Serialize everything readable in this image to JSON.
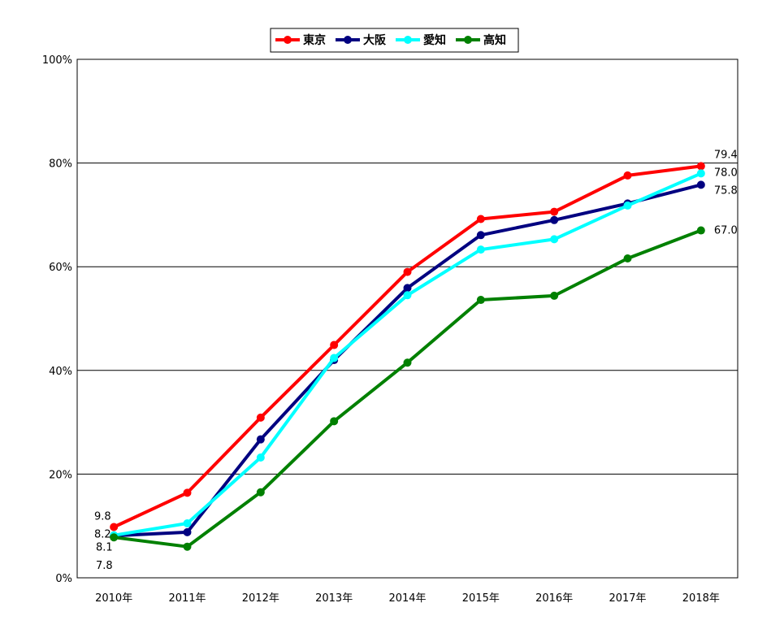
{
  "chart_data": {
    "type": "line",
    "categories": [
      "2010年",
      "2011年",
      "2012年",
      "2013年",
      "2014年",
      "2015年",
      "2016年",
      "2017年",
      "2018年"
    ],
    "ylim": [
      0,
      100
    ],
    "yticks": [
      "0%",
      "20%",
      "40%",
      "60%",
      "80%",
      "100%"
    ],
    "grid": true,
    "legend_position": "top-center",
    "series": [
      {
        "name": "東京",
        "color": "#ff0000",
        "values": [
          9.8,
          16.4,
          30.9,
          44.9,
          59.0,
          69.2,
          70.6,
          77.6,
          79.4
        ]
      },
      {
        "name": "大阪",
        "color": "#000080",
        "values": [
          8.1,
          8.8,
          26.7,
          42.0,
          55.9,
          66.1,
          69.0,
          72.2,
          75.8
        ]
      },
      {
        "name": "愛知",
        "color": "#00ffff",
        "values": [
          8.2,
          10.5,
          23.2,
          42.4,
          54.5,
          63.3,
          65.3,
          71.8,
          78.0
        ]
      },
      {
        "name": "高知",
        "color": "#008000",
        "values": [
          7.8,
          6.0,
          16.5,
          30.2,
          41.5,
          53.6,
          54.4,
          61.6,
          67.0
        ]
      }
    ],
    "data_labels": [
      {
        "series": 0,
        "point": 0,
        "text": "9.8",
        "anchor": "start-left"
      },
      {
        "series": 2,
        "point": 0,
        "text": "8.2",
        "anchor": "start-left"
      },
      {
        "series": 1,
        "point": 0,
        "text": "8.1",
        "anchor": "start-below"
      },
      {
        "series": 3,
        "point": 0,
        "text": "7.8",
        "anchor": "start-below2"
      },
      {
        "series": 0,
        "point": 8,
        "text": "79.4",
        "anchor": "end"
      },
      {
        "series": 2,
        "point": 8,
        "text": "78.0",
        "anchor": "end"
      },
      {
        "series": 1,
        "point": 8,
        "text": "75.8",
        "anchor": "end"
      },
      {
        "series": 3,
        "point": 8,
        "text": "67.0",
        "anchor": "end"
      }
    ]
  }
}
